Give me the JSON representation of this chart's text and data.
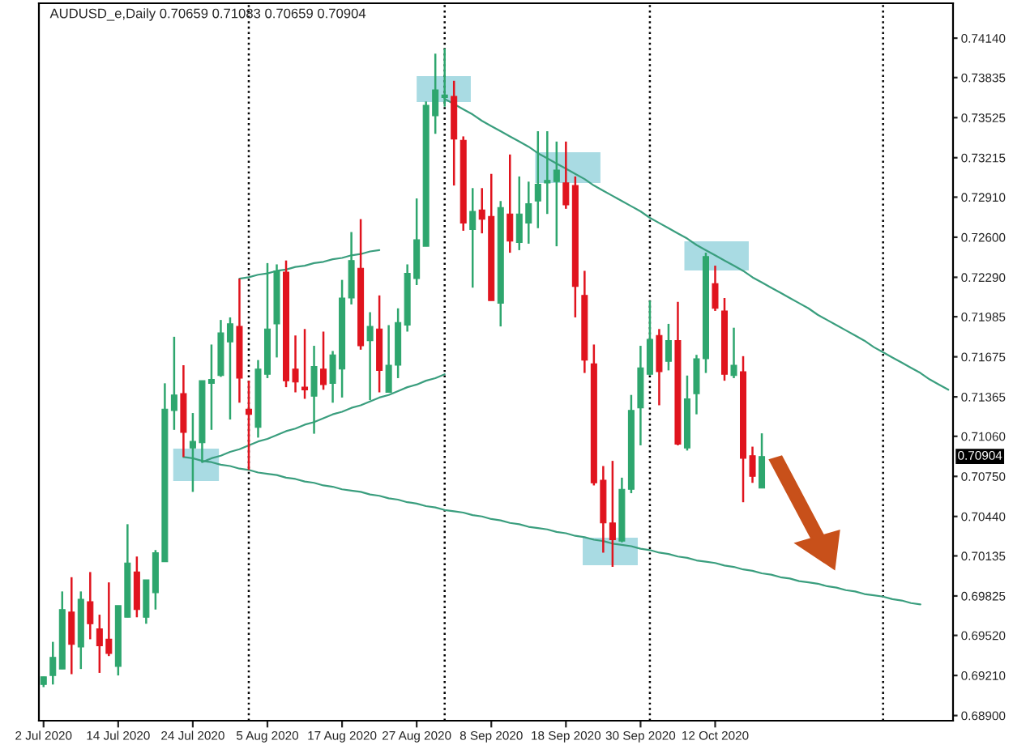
{
  "chart_data": {
    "type": "candlestick",
    "title": "AUDUSD_e,Daily 0.70659 0.71083 0.70659 0.70904",
    "categories": [
      "2 Jul 2020",
      null,
      null,
      null,
      null,
      null,
      null,
      null,
      "14 Jul 2020",
      null,
      null,
      null,
      null,
      null,
      null,
      null,
      "24 Jul 2020",
      null,
      null,
      null,
      null,
      null,
      null,
      null,
      "5 Aug 2020",
      null,
      null,
      null,
      null,
      null,
      null,
      null,
      "17 Aug 2020",
      null,
      null,
      null,
      null,
      null,
      null,
      null,
      "27 Aug 2020",
      null,
      null,
      null,
      null,
      null,
      null,
      null,
      "8 Sep 2020",
      null,
      null,
      null,
      null,
      null,
      null,
      null,
      "18 Sep 2020",
      null,
      null,
      null,
      null,
      null,
      null,
      null,
      "30 Sep 2020",
      null,
      null,
      null,
      null,
      null,
      null,
      null,
      "12 Oct 2020",
      null,
      null,
      null,
      null,
      null,
      null,
      null,
      null,
      null,
      null,
      null,
      null,
      null,
      null,
      null,
      null,
      null,
      null,
      null,
      null,
      null,
      null,
      null,
      null,
      null
    ],
    "ohlc": [
      [
        0.6914,
        0.692,
        0.6912,
        0.692
      ],
      [
        0.6921,
        0.6947,
        0.6914,
        0.6935
      ],
      [
        0.6926,
        0.6986,
        0.6926,
        0.6972
      ],
      [
        0.697,
        0.6997,
        0.6922,
        0.6945
      ],
      [
        0.6943,
        0.6986,
        0.6926,
        0.698
      ],
      [
        0.6978,
        0.7001,
        0.6949,
        0.6961
      ],
      [
        0.6957,
        0.6968,
        0.6923,
        0.6944
      ],
      [
        0.6949,
        0.6993,
        0.6936,
        0.6938
      ],
      [
        0.6928,
        0.6975,
        0.6921,
        0.6975
      ],
      [
        0.6966,
        0.7038,
        0.6966,
        0.7008
      ],
      [
        0.7001,
        0.7013,
        0.6966,
        0.6972
      ],
      [
        0.6966,
        0.6995,
        0.6961,
        0.6995
      ],
      [
        0.6985,
        0.7018,
        0.6972,
        0.7016
      ],
      [
        0.7009,
        0.7147,
        0.7009,
        0.7127
      ],
      [
        0.7126,
        0.7183,
        0.7111,
        0.7138
      ],
      [
        0.7139,
        0.7161,
        0.709,
        0.7109
      ],
      [
        0.7097,
        0.7124,
        0.7063,
        0.7102
      ],
      [
        0.7101,
        0.7149,
        0.7086,
        0.7149
      ],
      [
        0.7147,
        0.7177,
        0.7111,
        0.715
      ],
      [
        0.7153,
        0.7196,
        0.7152,
        0.7186
      ],
      [
        0.7179,
        0.7198,
        0.7119,
        0.7193
      ],
      [
        0.7191,
        0.7228,
        0.7132,
        0.7151
      ],
      [
        0.7127,
        0.7149,
        0.708,
        0.7123
      ],
      [
        0.7113,
        0.7165,
        0.7105,
        0.7158
      ],
      [
        0.7154,
        0.724,
        0.7151,
        0.7189
      ],
      [
        0.7193,
        0.7239,
        0.7167,
        0.7234
      ],
      [
        0.7233,
        0.7242,
        0.7144,
        0.7149
      ],
      [
        0.7158,
        0.7184,
        0.714,
        0.7148
      ],
      [
        0.7144,
        0.7189,
        0.7135,
        0.7142
      ],
      [
        0.7137,
        0.7176,
        0.7108,
        0.716
      ],
      [
        0.7158,
        0.7187,
        0.7142,
        0.7146
      ],
      [
        0.7147,
        0.7172,
        0.7132,
        0.7169
      ],
      [
        0.7158,
        0.7227,
        0.7136,
        0.7213
      ],
      [
        0.7213,
        0.7264,
        0.7208,
        0.7242
      ],
      [
        0.7236,
        0.7274,
        0.7173,
        0.7176
      ],
      [
        0.718,
        0.7202,
        0.7134,
        0.7191
      ],
      [
        0.7189,
        0.7215,
        0.714,
        0.7157
      ],
      [
        0.714,
        0.7192,
        0.714,
        0.7161
      ],
      [
        0.7161,
        0.7205,
        0.7151,
        0.7194
      ],
      [
        0.7192,
        0.7239,
        0.7187,
        0.7232
      ],
      [
        0.7228,
        0.729,
        0.7223,
        0.7258
      ],
      [
        0.7253,
        0.7365,
        0.7253,
        0.7362
      ],
      [
        0.7354,
        0.7402,
        0.734,
        0.7374
      ],
      [
        0.7368,
        0.7406,
        0.7361,
        0.737
      ],
      [
        0.7369,
        0.7381,
        0.73,
        0.7336
      ],
      [
        0.7335,
        0.7338,
        0.7265,
        0.7271
      ],
      [
        0.7266,
        0.7298,
        0.7221,
        0.728
      ],
      [
        0.7281,
        0.7298,
        0.7263,
        0.7274
      ],
      [
        0.7276,
        0.7309,
        0.7211,
        0.7211
      ],
      [
        0.7209,
        0.7288,
        0.7191,
        0.7283
      ],
      [
        0.7278,
        0.7324,
        0.7248,
        0.7257
      ],
      [
        0.7256,
        0.7307,
        0.725,
        0.7278
      ],
      [
        0.7271,
        0.7303,
        0.7255,
        0.7286
      ],
      [
        0.7288,
        0.7342,
        0.7267,
        0.7301
      ],
      [
        0.7302,
        0.7342,
        0.7278,
        0.7304
      ],
      [
        0.7303,
        0.7334,
        0.7253,
        0.7312
      ],
      [
        0.7302,
        0.7334,
        0.7282,
        0.7285
      ],
      [
        0.73,
        0.7307,
        0.7198,
        0.7222
      ],
      [
        0.7215,
        0.7234,
        0.7155,
        0.7165
      ],
      [
        0.7162,
        0.7177,
        0.7068,
        0.707
      ],
      [
        0.7072,
        0.7083,
        0.7016,
        0.7039
      ],
      [
        0.7039,
        0.7087,
        0.7005,
        0.7026
      ],
      [
        0.7025,
        0.7074,
        0.7024,
        0.7065
      ],
      [
        0.7065,
        0.7138,
        0.7062,
        0.7126
      ],
      [
        0.7128,
        0.7176,
        0.7099,
        0.7159
      ],
      [
        0.7154,
        0.7211,
        0.7153,
        0.7181
      ],
      [
        0.7184,
        0.7189,
        0.713,
        0.7156
      ],
      [
        0.7164,
        0.7193,
        0.7157,
        0.718
      ],
      [
        0.718,
        0.721,
        0.7099,
        0.71
      ],
      [
        0.7097,
        0.7153,
        0.7095,
        0.7135
      ],
      [
        0.7139,
        0.7169,
        0.7123,
        0.7166
      ],
      [
        0.7166,
        0.7248,
        0.7155,
        0.7245
      ],
      [
        0.7224,
        0.7238,
        0.7203,
        0.7205
      ],
      [
        0.7203,
        0.7213,
        0.7149,
        0.7154
      ],
      [
        0.7153,
        0.719,
        0.7151,
        0.7161
      ],
      [
        0.7156,
        0.7168,
        0.7055,
        0.7089
      ],
      [
        0.7091,
        0.7098,
        0.707,
        0.7075
      ],
      [
        0.70659,
        0.71083,
        0.70659,
        0.70904
      ],
      null,
      null,
      null,
      null,
      null,
      null,
      null,
      null,
      null,
      null,
      null,
      null,
      null,
      null,
      null,
      null,
      null,
      null,
      null,
      null
    ],
    "colors": [
      "#2ea66e",
      "#2ea66e",
      "#2ea66e",
      "#e0141e",
      "#2ea66e",
      "#e0141e",
      "#e0141e",
      "#e0141e",
      "#2ea66e",
      "#2ea66e",
      "#e0141e",
      "#2ea66e",
      "#2ea66e",
      "#2ea66e",
      "#2ea66e",
      "#e0141e",
      "#2ea66e",
      "#2ea66e",
      "#2ea66e",
      "#2ea66e",
      "#2ea66e",
      "#e0141e",
      "#e0141e",
      "#2ea66e",
      "#2ea66e",
      "#2ea66e",
      "#e0141e",
      "#e0141e",
      "#e0141e",
      "#2ea66e",
      "#e0141e",
      "#2ea66e",
      "#2ea66e",
      "#2ea66e",
      "#e0141e",
      "#2ea66e",
      "#e0141e",
      "#2ea66e",
      "#2ea66e",
      "#2ea66e",
      "#2ea66e",
      "#2ea66e",
      "#2ea66e",
      "#2ea66e",
      "#e0141e",
      "#e0141e",
      "#2ea66e",
      "#e0141e",
      "#e0141e",
      "#2ea66e",
      "#e0141e",
      "#2ea66e",
      "#2ea66e",
      "#2ea66e",
      "#2ea66e",
      "#2ea66e",
      "#e0141e",
      "#e0141e",
      "#e0141e",
      "#e0141e",
      "#e0141e",
      "#e0141e",
      "#2ea66e",
      "#2ea66e",
      "#2ea66e",
      "#2ea66e",
      "#e0141e",
      "#2ea66e",
      "#e0141e",
      "#2ea66e",
      "#2ea66e",
      "#2ea66e",
      "#e0141e",
      "#e0141e",
      "#2ea66e",
      "#e0141e",
      "#e0141e",
      "#2ea66e",
      null,
      null,
      null,
      null,
      null,
      null,
      null,
      null,
      null,
      null,
      null,
      null,
      null,
      null,
      null,
      null,
      null,
      null,
      null,
      null
    ],
    "series": [
      {
        "type": "line",
        "color": "#3a9e7e",
        "values": [
          null,
          null,
          null,
          null,
          null,
          null,
          null,
          null,
          null,
          null,
          null,
          null,
          null,
          null,
          null,
          null,
          null,
          null,
          null,
          null,
          null,
          0.7228,
          0.7229,
          0.7231,
          0.7232,
          0.7234,
          0.7235,
          0.7237,
          0.7238,
          0.724,
          0.7241,
          0.7243,
          0.7244,
          0.7246,
          0.7247,
          0.7249,
          0.725,
          null,
          null,
          null,
          null,
          null,
          null,
          null,
          null,
          null,
          null,
          null,
          null,
          null,
          null,
          null,
          null,
          null,
          null,
          null,
          null,
          null,
          null,
          null,
          null,
          null,
          null,
          null,
          null,
          null,
          null,
          null,
          null,
          null,
          null,
          null,
          null,
          null,
          null,
          null,
          null,
          null,
          null,
          null,
          null,
          null,
          null,
          null,
          null,
          null,
          null,
          null,
          null,
          null,
          null,
          null,
          null,
          null,
          null,
          null,
          null,
          null
        ]
      },
      {
        "type": "line",
        "color": "#3a9e7e",
        "values": [
          null,
          null,
          null,
          null,
          null,
          null,
          null,
          null,
          null,
          null,
          null,
          null,
          null,
          null,
          null,
          null,
          null,
          0.7086,
          0.7089,
          0.7091,
          0.7094,
          0.7096,
          0.7099,
          0.7102,
          0.7104,
          0.7107,
          0.711,
          0.7112,
          0.7115,
          0.7117,
          0.712,
          0.7123,
          0.7125,
          0.7128,
          0.713,
          0.7133,
          0.7136,
          0.7138,
          0.7141,
          0.7144,
          0.7146,
          0.7149,
          0.7151,
          0.7154,
          null,
          null,
          null,
          null,
          null,
          null,
          null,
          null,
          null,
          null,
          null,
          null,
          null,
          null,
          null,
          null,
          null,
          null,
          null,
          null,
          null,
          null,
          null,
          null,
          null,
          null,
          null,
          null,
          null,
          null,
          null,
          null,
          null,
          null,
          null,
          null,
          null,
          null,
          null,
          null,
          null,
          null,
          null,
          null,
          null,
          null,
          null,
          null,
          null,
          null,
          null,
          null,
          null,
          null
        ]
      },
      {
        "type": "line",
        "color": "#3a9e7e",
        "values": [
          null,
          null,
          null,
          null,
          null,
          null,
          null,
          null,
          null,
          null,
          null,
          null,
          null,
          null,
          null,
          0.709,
          0.7089,
          0.7087,
          0.7086,
          0.7084,
          0.7083,
          0.7081,
          0.708,
          0.7078,
          0.7077,
          0.7076,
          0.7074,
          0.7073,
          0.7071,
          0.707,
          0.7068,
          0.7067,
          0.7065,
          0.7064,
          0.7063,
          0.7061,
          0.706,
          0.7058,
          0.7057,
          0.7055,
          0.7054,
          0.7052,
          0.7051,
          0.7049,
          0.7048,
          0.7047,
          0.7045,
          0.7044,
          0.7042,
          0.7041,
          0.7039,
          0.7038,
          0.7036,
          0.7035,
          0.7034,
          0.7032,
          0.7031,
          0.7029,
          0.7028,
          0.7026,
          0.7025,
          0.7023,
          0.7022,
          0.7021,
          0.7019,
          0.7018,
          0.7016,
          0.7015,
          0.7013,
          0.7012,
          0.701,
          0.7009,
          0.7008,
          0.7006,
          0.7005,
          0.7003,
          0.7002,
          0.7,
          0.6999,
          0.6997,
          0.6996,
          0.6994,
          0.6993,
          0.6992,
          0.699,
          0.6989,
          0.6987,
          0.6986,
          0.6984,
          0.6983,
          0.6982,
          0.698,
          0.6979,
          0.6977,
          0.6976,
          null,
          null,
          null
        ]
      },
      {
        "type": "line",
        "color": "#3a9e7e",
        "values": [
          null,
          null,
          null,
          null,
          null,
          null,
          null,
          null,
          null,
          null,
          null,
          null,
          null,
          null,
          null,
          null,
          null,
          null,
          null,
          null,
          null,
          null,
          null,
          null,
          null,
          null,
          null,
          null,
          null,
          null,
          null,
          null,
          null,
          null,
          null,
          null,
          null,
          null,
          null,
          null,
          null,
          null,
          null,
          0.7367,
          0.7363,
          0.7359,
          0.7355,
          0.735,
          0.7346,
          0.7342,
          0.7338,
          0.7334,
          0.733,
          0.7325,
          0.7321,
          0.7317,
          0.7313,
          0.7309,
          0.7305,
          0.73,
          0.7296,
          0.7292,
          0.7288,
          0.7284,
          0.728,
          0.7275,
          0.7271,
          0.7267,
          0.7263,
          0.7259,
          0.7254,
          0.725,
          0.7246,
          0.7242,
          0.7238,
          0.7234,
          0.7229,
          0.7225,
          0.7221,
          0.7217,
          0.7213,
          0.7209,
          0.7205,
          0.72,
          0.7196,
          0.7192,
          0.7188,
          0.7184,
          0.718,
          0.7175,
          0.7171,
          0.7167,
          0.7163,
          0.7159,
          0.7155,
          0.715,
          0.7146,
          0.7142
        ]
      }
    ],
    "grid": "x",
    "ylim": [
      0.6886,
      0.7441
    ],
    "yticks": [
      {
        "value": 0.7414,
        "label": "0.74140"
      },
      {
        "value": 0.73835,
        "label": "0.73835"
      },
      {
        "value": 0.73525,
        "label": "0.73525"
      },
      {
        "value": 0.73215,
        "label": "0.73215"
      },
      {
        "value": 0.7291,
        "label": "0.72910"
      },
      {
        "value": 0.726,
        "label": "0.72600"
      },
      {
        "value": 0.7229,
        "label": "0.72290"
      },
      {
        "value": 0.71985,
        "label": "0.71985"
      },
      {
        "value": 0.71675,
        "label": "0.71675"
      },
      {
        "value": 0.71365,
        "label": "0.71365"
      },
      {
        "value": 0.7106,
        "label": "0.71060"
      },
      {
        "value": 0.7075,
        "label": "0.70750"
      },
      {
        "value": 0.7044,
        "label": "0.70440"
      },
      {
        "value": 0.70135,
        "label": "0.70135"
      },
      {
        "value": 0.69825,
        "label": "0.69825"
      },
      {
        "value": 0.6952,
        "label": "0.69520"
      },
      {
        "value": 0.6921,
        "label": "0.69210"
      },
      {
        "value": 0.689,
        "label": "0.68900"
      }
    ],
    "annotations": [
      {
        "text": "0.70904",
        "y": 0.70904
      }
    ]
  }
}
